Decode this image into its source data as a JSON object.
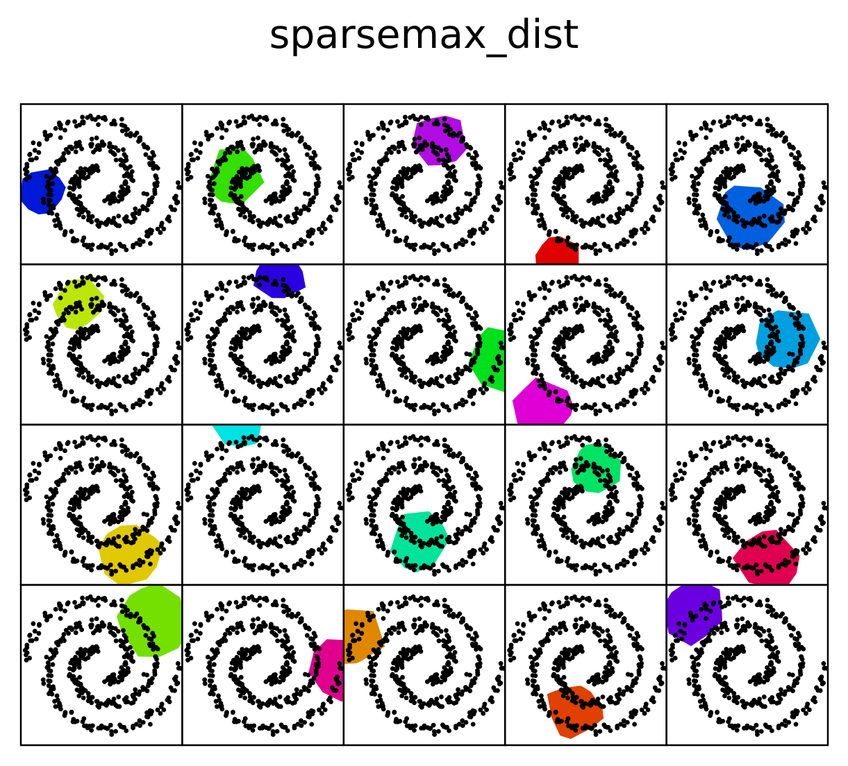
{
  "chart_data": {
    "type": "scatter",
    "title": "sparsemax_dist",
    "layout": {
      "rows": 4,
      "cols": 5
    },
    "xlim": [
      -1,
      1
    ],
    "ylim": [
      -1,
      1
    ],
    "axes_ticks": false,
    "grid": false,
    "point_color": "#000000",
    "spiral": {
      "arms": 2,
      "max_angle_rad": 9.4,
      "max_radius": 0.97,
      "inner_start_angle_rad": 1.8,
      "points_per_arm": 220,
      "noise": 0.035
    },
    "panels": [
      {
        "region_center": [
          -0.75,
          -0.1
        ],
        "region_radius": 0.3,
        "color": "#0019d9"
      },
      {
        "region_center": [
          -0.35,
          0.1
        ],
        "region_radius": 0.36,
        "color": "#33e000"
      },
      {
        "region_center": [
          0.2,
          0.55
        ],
        "region_radius": 0.34,
        "color": "#b20ce4"
      },
      {
        "region_center": [
          -0.35,
          -0.95
        ],
        "region_radius": 0.32,
        "color": "#e00000"
      },
      {
        "region_center": [
          0.05,
          -0.4
        ],
        "region_radius": 0.42,
        "color": "#0060e0"
      },
      {
        "region_center": [
          -0.3,
          0.5
        ],
        "region_radius": 0.34,
        "color": "#bce60a"
      },
      {
        "region_center": [
          0.2,
          0.85
        ],
        "region_radius": 0.33,
        "color": "#2b00e0"
      },
      {
        "region_center": [
          0.95,
          -0.2
        ],
        "region_radius": 0.42,
        "color": "#00e01b"
      },
      {
        "region_center": [
          -0.55,
          -0.8
        ],
        "region_radius": 0.38,
        "color": "#de00d4"
      },
      {
        "region_center": [
          0.5,
          0.05
        ],
        "region_radius": 0.4,
        "color": "#009fe0"
      },
      {
        "region_center": [
          0.35,
          -0.65
        ],
        "region_radius": 0.42,
        "color": "#e0c900"
      },
      {
        "region_center": [
          -0.3,
          1.0
        ],
        "region_radius": 0.35,
        "color": "#00e3e3"
      },
      {
        "region_center": [
          -0.05,
          -0.45
        ],
        "region_radius": 0.38,
        "color": "#00e39a"
      },
      {
        "region_center": [
          0.15,
          0.45
        ],
        "region_radius": 0.32,
        "color": "#00e364"
      },
      {
        "region_center": [
          0.25,
          -0.7
        ],
        "region_radius": 0.4,
        "color": "#e00050"
      },
      {
        "region_center": [
          0.65,
          0.55
        ],
        "region_radius": 0.45,
        "color": "#74e000"
      },
      {
        "region_center": [
          0.95,
          -0.05
        ],
        "region_radius": 0.38,
        "color": "#e0008d"
      },
      {
        "region_center": [
          -0.9,
          0.35
        ],
        "region_radius": 0.4,
        "color": "#e08700"
      },
      {
        "region_center": [
          -0.15,
          -0.55
        ],
        "region_radius": 0.36,
        "color": "#e04000"
      },
      {
        "region_center": [
          -0.65,
          0.65
        ],
        "region_radius": 0.4,
        "color": "#6a00e0"
      }
    ]
  }
}
